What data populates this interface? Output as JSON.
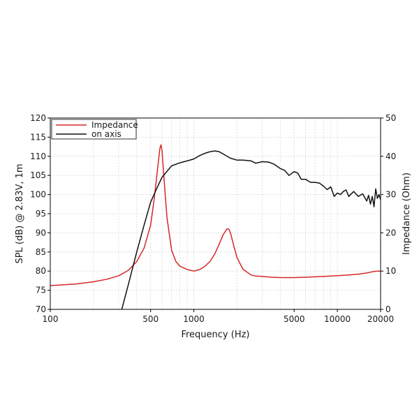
{
  "chart_data": {
    "type": "line",
    "xlabel": "Frequency (Hz)",
    "ylabel_left": "SPL (dB) @ 2.83V, 1m",
    "ylabel_right": "Impedance (Ohm)",
    "x_scale": "log",
    "xlim": [
      100,
      20000
    ],
    "ylim_left": [
      70,
      120
    ],
    "ylim_right": [
      0,
      50
    ],
    "x_ticks": [
      100,
      500,
      1000,
      5000,
      10000,
      20000
    ],
    "x_tick_labels": [
      "100",
      "500",
      "1000",
      "5000",
      "10000",
      "20000"
    ],
    "y_left_ticks": [
      70,
      75,
      80,
      85,
      90,
      95,
      100,
      105,
      110,
      115,
      120
    ],
    "y_left_tick_labels": [
      "70",
      "75",
      "80",
      "85",
      "90",
      "95",
      "100",
      "105",
      "110",
      "115",
      "120"
    ],
    "y_right_ticks": [
      0,
      10,
      20,
      30,
      40,
      50
    ],
    "y_right_tick_labels": [
      "0",
      "10",
      "20",
      "30",
      "40",
      "50"
    ],
    "grid": true,
    "legend_position": "top-left",
    "series": [
      {
        "name": "Impedance",
        "axis": "right",
        "color": "#d62728",
        "x": [
          100,
          150,
          200,
          250,
          300,
          350,
          400,
          450,
          500,
          530,
          560,
          580,
          590,
          600,
          620,
          650,
          700,
          750,
          800,
          900,
          1000,
          1100,
          1200,
          1300,
          1400,
          1500,
          1600,
          1700,
          1750,
          1800,
          1900,
          2000,
          2200,
          2500,
          2700,
          3000,
          3500,
          4000,
          5000,
          6000,
          7000,
          8000,
          9000,
          10000,
          12000,
          14000,
          16000,
          17000,
          18000,
          19000,
          20000
        ],
        "y": [
          6.2,
          6.6,
          7.2,
          7.9,
          8.8,
          10.2,
          12.5,
          16.0,
          22.0,
          29.0,
          37.0,
          42.0,
          43.0,
          41.5,
          34.0,
          24.0,
          15.5,
          12.5,
          11.3,
          10.4,
          10.0,
          10.4,
          11.3,
          12.6,
          14.5,
          17.0,
          19.5,
          21.0,
          21.0,
          20.0,
          16.5,
          13.5,
          10.5,
          9.0,
          8.7,
          8.6,
          8.4,
          8.3,
          8.3,
          8.4,
          8.5,
          8.6,
          8.7,
          8.8,
          9.0,
          9.2,
          9.5,
          9.7,
          9.9,
          10.0,
          10.0
        ]
      },
      {
        "name": "on axis",
        "axis": "left",
        "color": "#111111",
        "x": [
          315,
          350,
          400,
          450,
          500,
          550,
          600,
          700,
          800,
          900,
          1000,
          1100,
          1200,
          1300,
          1400,
          1500,
          1600,
          1800,
          2000,
          2200,
          2500,
          2700,
          3000,
          3300,
          3600,
          4000,
          4300,
          4600,
          5000,
          5300,
          5600,
          6000,
          6500,
          7000,
          7500,
          8000,
          8500,
          9000,
          9500,
          10000,
          10500,
          11000,
          11500,
          12000,
          13000,
          14000,
          15000,
          16000,
          16500,
          17000,
          17500,
          18000,
          18500,
          19000,
          19500,
          20000
        ],
        "y": [
          70.0,
          76.5,
          85.0,
          92.0,
          98.0,
          101.5,
          104.5,
          107.5,
          108.3,
          108.8,
          109.3,
          110.2,
          110.8,
          111.2,
          111.4,
          111.2,
          110.6,
          109.5,
          109.0,
          109.0,
          108.8,
          108.2,
          108.6,
          108.5,
          108.0,
          106.8,
          106.3,
          105.0,
          106.0,
          105.6,
          104.0,
          104.0,
          103.2,
          103.2,
          103.0,
          102.2,
          101.3,
          102.0,
          99.5,
          100.4,
          100.0,
          100.8,
          101.2,
          99.5,
          100.8,
          99.5,
          100.2,
          98.3,
          99.8,
          97.5,
          99.5,
          96.8,
          101.5,
          99.0,
          100.0,
          98.7
        ]
      }
    ]
  }
}
